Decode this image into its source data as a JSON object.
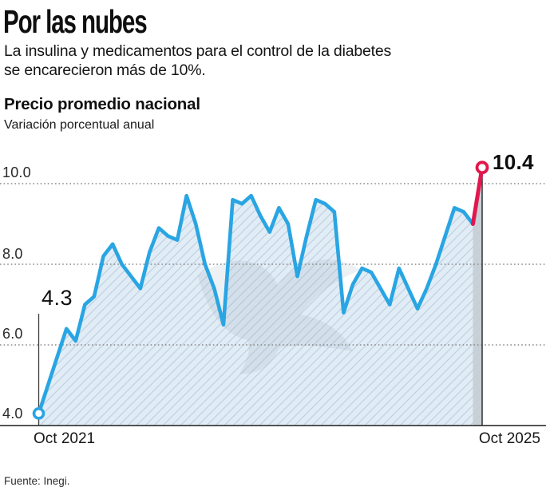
{
  "header": {
    "title": "Por las nubes",
    "subtitle_line1": "La insulina y medicamentos para el control de la diabetes",
    "subtitle_line2": "se encarecieron más de 10%."
  },
  "chart": {
    "heading": "Precio promedio nacional",
    "subheading": "Variación porcentual anual",
    "y_tick_labels": [
      "10.0",
      "8.0",
      "6.0",
      "4.0"
    ],
    "x_start_label": "Oct 2021",
    "x_end_label": "Oct 2025",
    "start_annotation_label": "4.3",
    "end_annotation_label": "10.4"
  },
  "footer": {
    "source": "Fuente: Inegi."
  },
  "colors": {
    "line_blue": "#29a5e3",
    "highlight_red": "#e2174d",
    "area_fill": "#e0ecf6",
    "hatch": "#bfcedb",
    "final_band": "#c9d0d6",
    "grid": "#8a8a8a",
    "axis": "#1f1f1f",
    "annotation_line": "#3c3c3c",
    "watermark": "#7e929f"
  },
  "chart_data": {
    "type": "area",
    "title": "Precio promedio nacional",
    "subtitle": "Variación porcentual anual",
    "x_start": "Oct 2021",
    "x_end": "Oct 2025",
    "x_frequency": "monthly",
    "y_ticks": [
      4.0,
      6.0,
      8.0,
      10.0
    ],
    "ylim": [
      4.0,
      10.5
    ],
    "grid": "dotted horizontal, solid baseline at 4.0",
    "legend": "none",
    "values": [
      4.3,
      5.0,
      5.7,
      6.4,
      6.1,
      7.0,
      7.2,
      8.2,
      8.5,
      8.0,
      7.7,
      7.4,
      8.3,
      8.9,
      8.7,
      8.6,
      9.7,
      9.0,
      8.0,
      7.4,
      6.5,
      9.6,
      9.5,
      9.7,
      9.2,
      8.8,
      9.4,
      9.0,
      7.7,
      8.7,
      9.6,
      9.5,
      9.3,
      6.8,
      7.5,
      7.9,
      7.8,
      7.4,
      7.0,
      7.9,
      7.4,
      6.9,
      7.4,
      8.0,
      8.7,
      9.4,
      9.3,
      9.0,
      10.4
    ],
    "first_value": 4.3,
    "last_value": 10.4,
    "last_segment_highlighted": true,
    "annotations": [
      {
        "point": "first",
        "label": "4.3"
      },
      {
        "point": "last",
        "label": "10.4"
      }
    ]
  }
}
